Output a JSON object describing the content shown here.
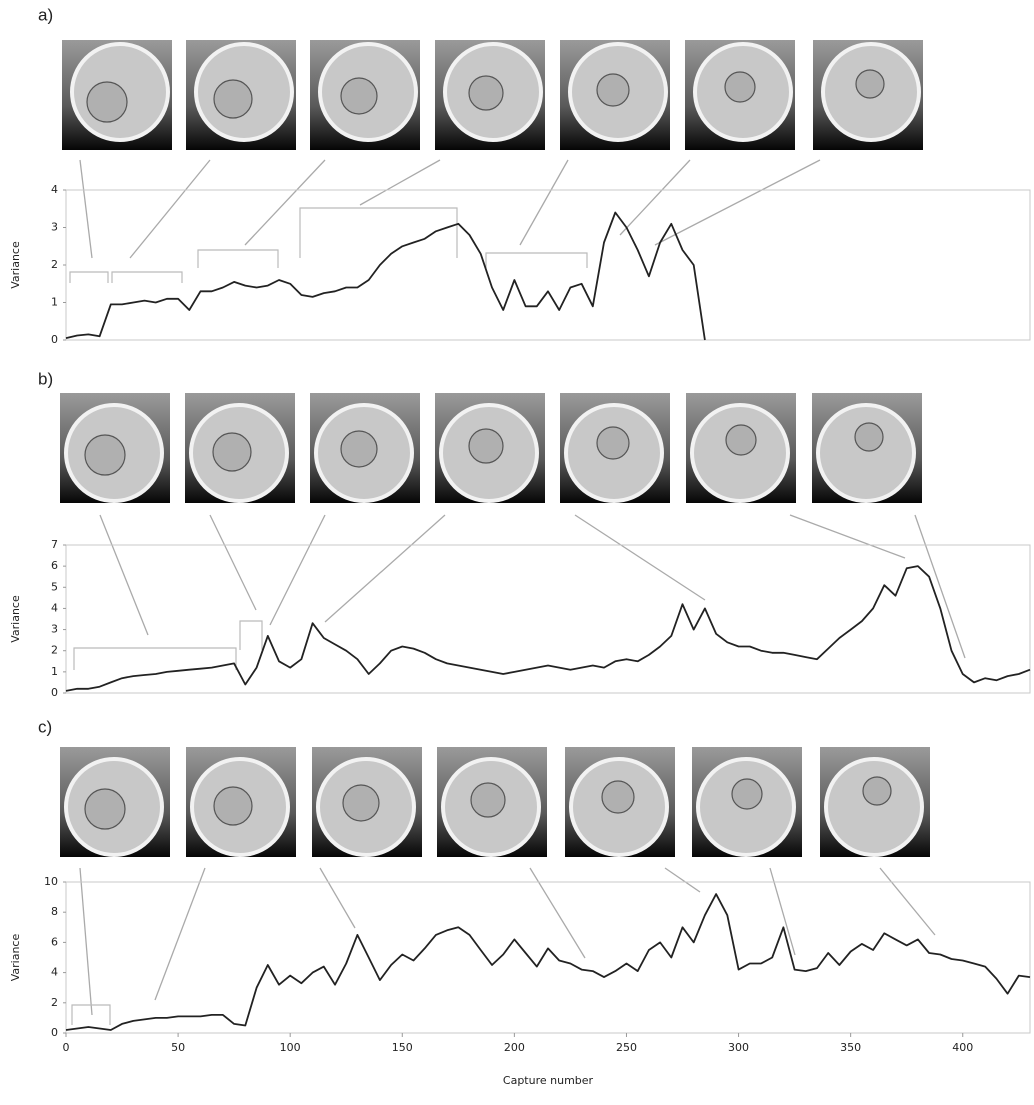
{
  "chart_data": [
    {
      "type": "line",
      "label": "a)",
      "ylabel": "Variance",
      "color": "#222222",
      "xlim": [
        0,
        430
      ],
      "ylim": [
        0,
        4
      ],
      "yticks": [
        0,
        1,
        2,
        3,
        4
      ],
      "x": [
        0,
        5,
        10,
        15,
        20,
        25,
        30,
        35,
        40,
        45,
        50,
        55,
        60,
        65,
        70,
        75,
        80,
        85,
        90,
        95,
        100,
        105,
        110,
        115,
        120,
        125,
        130,
        135,
        140,
        145,
        150,
        155,
        160,
        165,
        170,
        175,
        180,
        185,
        190,
        195,
        200,
        205,
        210,
        215,
        220,
        225,
        230,
        235,
        240,
        245,
        250,
        255,
        260,
        265,
        270,
        275,
        280,
        285
      ],
      "values": [
        0.05,
        0.12,
        0.15,
        0.1,
        0.95,
        0.95,
        1.0,
        1.05,
        1.0,
        1.1,
        1.1,
        0.8,
        1.3,
        1.3,
        1.4,
        1.55,
        1.45,
        1.4,
        1.45,
        1.6,
        1.5,
        1.2,
        1.15,
        1.25,
        1.3,
        1.4,
        1.4,
        1.6,
        2.0,
        2.3,
        2.5,
        2.6,
        2.7,
        2.9,
        3.0,
        3.1,
        2.8,
        2.3,
        1.4,
        0.8,
        1.6,
        0.9,
        0.9,
        1.3,
        0.8,
        1.4,
        1.5,
        0.9,
        2.6,
        3.4,
        3.0,
        2.4,
        1.7,
        2.6,
        3.1,
        2.4,
        2.0,
        0
      ]
    },
    {
      "type": "line",
      "label": "b)",
      "ylabel": "Variance",
      "color": "#222222",
      "xlim": [
        0,
        430
      ],
      "ylim": [
        0,
        7
      ],
      "yticks": [
        0,
        1,
        2,
        3,
        4,
        5,
        6,
        7
      ],
      "x": [
        0,
        5,
        10,
        15,
        20,
        25,
        30,
        35,
        40,
        45,
        50,
        55,
        60,
        65,
        70,
        75,
        80,
        85,
        90,
        95,
        100,
        105,
        110,
        115,
        120,
        125,
        130,
        135,
        140,
        145,
        150,
        155,
        160,
        165,
        170,
        175,
        180,
        185,
        190,
        195,
        200,
        205,
        210,
        215,
        220,
        225,
        230,
        235,
        240,
        245,
        250,
        255,
        260,
        265,
        270,
        275,
        280,
        285,
        290,
        295,
        300,
        305,
        310,
        315,
        320,
        325,
        330,
        335,
        340,
        345,
        350,
        355,
        360,
        365,
        370,
        375,
        380,
        385,
        390,
        395,
        400,
        405,
        410,
        415,
        420,
        425,
        430
      ],
      "values": [
        0.1,
        0.2,
        0.2,
        0.3,
        0.5,
        0.7,
        0.8,
        0.85,
        0.9,
        1.0,
        1.05,
        1.1,
        1.15,
        1.2,
        1.3,
        1.4,
        0.4,
        1.2,
        2.7,
        1.5,
        1.2,
        1.6,
        3.3,
        2.6,
        2.3,
        2.0,
        1.6,
        0.9,
        1.4,
        2.0,
        2.2,
        2.1,
        1.9,
        1.6,
        1.4,
        1.3,
        1.2,
        1.1,
        1.0,
        0.9,
        1.0,
        1.1,
        1.2,
        1.3,
        1.2,
        1.1,
        1.2,
        1.3,
        1.2,
        1.5,
        1.6,
        1.5,
        1.8,
        2.2,
        2.7,
        4.2,
        3.0,
        4.0,
        2.8,
        2.4,
        2.2,
        2.2,
        2.0,
        1.9,
        1.9,
        1.8,
        1.7,
        1.6,
        2.1,
        2.6,
        3.0,
        3.4,
        4.0,
        5.1,
        4.6,
        5.9,
        6.0,
        5.5,
        4.0,
        2.0,
        0.9,
        0.5,
        0.7,
        0.6,
        0.8,
        0.9,
        1.1
      ]
    },
    {
      "type": "line",
      "label": "c)",
      "ylabel": "Variance",
      "xlabel": "Capture number",
      "color": "#222222",
      "xlim": [
        0,
        430
      ],
      "xticks": [
        0,
        50,
        100,
        150,
        200,
        250,
        300,
        350,
        400
      ],
      "ylim": [
        0,
        10
      ],
      "yticks": [
        0,
        2,
        4,
        6,
        8,
        10
      ],
      "x": [
        0,
        5,
        10,
        15,
        20,
        25,
        30,
        35,
        40,
        45,
        50,
        55,
        60,
        65,
        70,
        75,
        80,
        85,
        90,
        95,
        100,
        105,
        110,
        115,
        120,
        125,
        130,
        135,
        140,
        145,
        150,
        155,
        160,
        165,
        170,
        175,
        180,
        185,
        190,
        195,
        200,
        205,
        210,
        215,
        220,
        225,
        230,
        235,
        240,
        245,
        250,
        255,
        260,
        265,
        270,
        275,
        280,
        285,
        290,
        295,
        300,
        305,
        310,
        315,
        320,
        325,
        330,
        335,
        340,
        345,
        350,
        355,
        360,
        365,
        370,
        375,
        380,
        385,
        390,
        395,
        400,
        405,
        410,
        415,
        420,
        425,
        430
      ],
      "values": [
        0.2,
        0.3,
        0.4,
        0.3,
        0.2,
        0.6,
        0.8,
        0.9,
        1.0,
        1.0,
        1.1,
        1.1,
        1.1,
        1.2,
        1.2,
        0.6,
        0.5,
        3.0,
        4.5,
        3.2,
        3.8,
        3.3,
        4.0,
        4.4,
        3.2,
        4.6,
        6.5,
        5.0,
        3.5,
        4.5,
        5.2,
        4.8,
        5.6,
        6.5,
        6.8,
        7.0,
        6.5,
        5.5,
        4.5,
        5.2,
        6.2,
        5.3,
        4.4,
        5.6,
        4.8,
        4.6,
        4.2,
        4.1,
        3.7,
        4.1,
        4.6,
        4.1,
        5.5,
        6.0,
        5.0,
        7.0,
        6.0,
        7.8,
        9.2,
        7.8,
        4.2,
        4.6,
        4.6,
        5.0,
        7.0,
        4.2,
        4.1,
        4.3,
        5.3,
        4.5,
        5.4,
        5.9,
        5.5,
        6.6,
        6.2,
        5.8,
        6.2,
        5.3,
        5.2,
        4.9,
        4.8,
        4.6,
        4.4,
        3.6,
        2.6,
        3.8,
        3.7
      ]
    }
  ]
}
